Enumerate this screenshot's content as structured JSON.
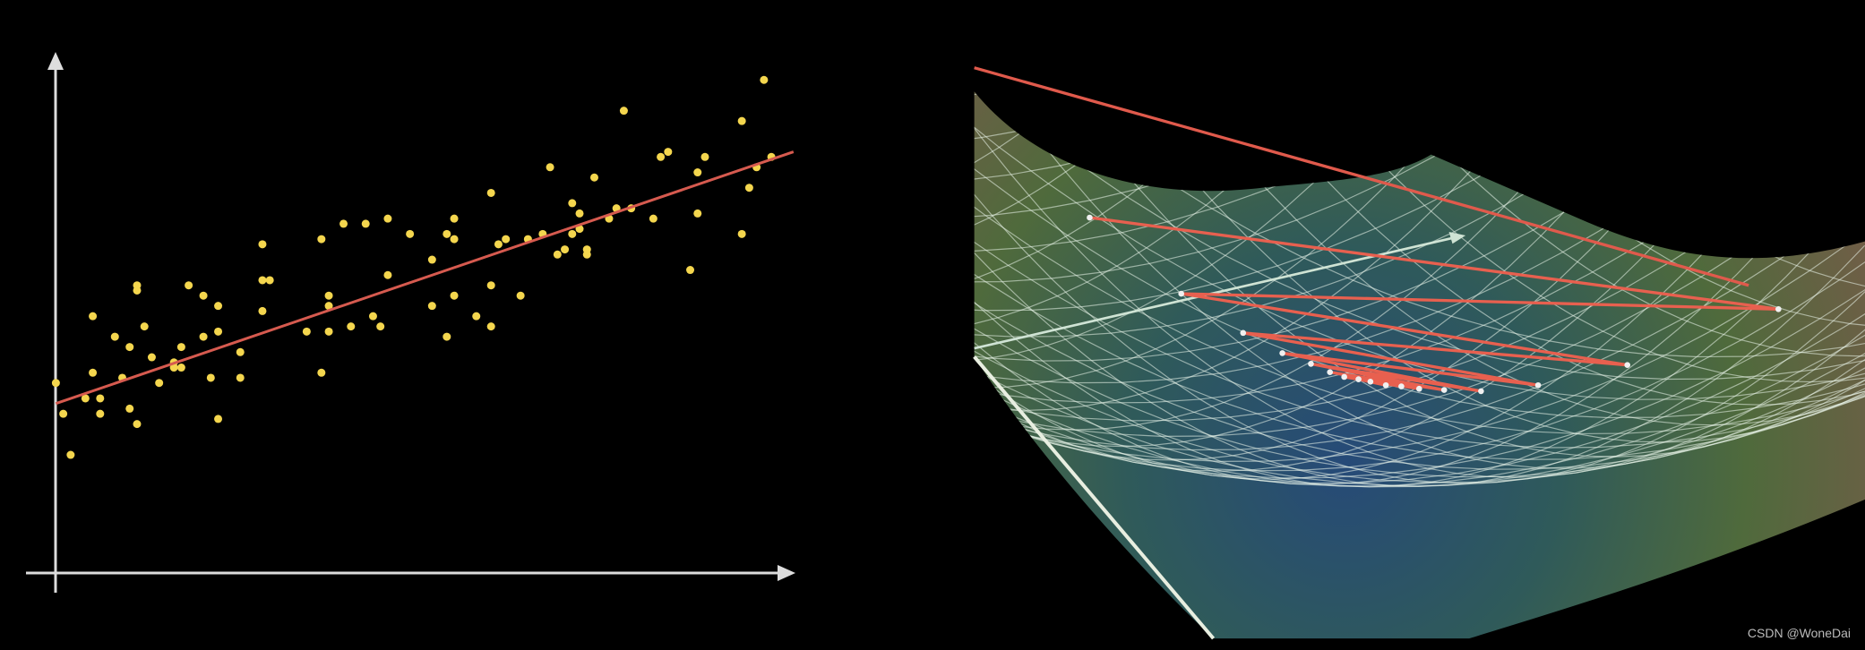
{
  "chart_data": {
    "type": "scatter",
    "xlim": [
      0,
      100
    ],
    "ylim": [
      0,
      100
    ],
    "series": [
      {
        "type": "scatter",
        "color": "#f4d64e",
        "x": [
          0,
          1,
          2,
          4,
          5,
          5,
          6,
          6,
          8,
          9,
          10,
          11,
          10,
          11,
          11,
          12,
          13,
          14,
          16,
          16,
          17,
          17,
          18,
          20,
          20,
          21,
          22,
          22,
          22,
          25,
          25,
          28,
          28,
          28,
          29,
          34,
          36,
          36,
          37,
          37,
          37,
          39,
          40,
          42,
          43,
          44,
          45,
          45,
          48,
          51,
          51,
          53,
          53,
          54,
          54,
          54,
          57,
          59,
          59,
          59,
          60,
          61,
          63,
          64,
          66,
          67,
          68,
          69,
          70,
          70,
          71,
          71,
          72,
          72,
          73,
          75,
          76,
          77,
          78,
          81,
          82,
          83,
          86,
          87,
          87,
          88,
          93,
          93,
          94,
          95,
          96,
          97
        ],
        "values": [
          37,
          31,
          23,
          34,
          39,
          50,
          34,
          31,
          46,
          38,
          32,
          29,
          44,
          55,
          56,
          48,
          42,
          37,
          41,
          40,
          44,
          40,
          56,
          54,
          46,
          38,
          30,
          47,
          52,
          38,
          43,
          64,
          57,
          51,
          57,
          47,
          65,
          39,
          47,
          54,
          52,
          68,
          48,
          68,
          50,
          48,
          69,
          58,
          66,
          61,
          52,
          66,
          46,
          54,
          69,
          65,
          50,
          56,
          74,
          48,
          64,
          65,
          54,
          65,
          66,
          79,
          62,
          63,
          72,
          66,
          67,
          70,
          63,
          62,
          77,
          69,
          71,
          90,
          71,
          69,
          81,
          82,
          59,
          70,
          78,
          81,
          66,
          88,
          75,
          79,
          96,
          81
        ]
      },
      {
        "type": "line",
        "color": "#d65a4f",
        "x": [
          0,
          100
        ],
        "values": [
          33,
          82
        ]
      }
    ]
  },
  "watermark": "CSDN @WoneDai"
}
